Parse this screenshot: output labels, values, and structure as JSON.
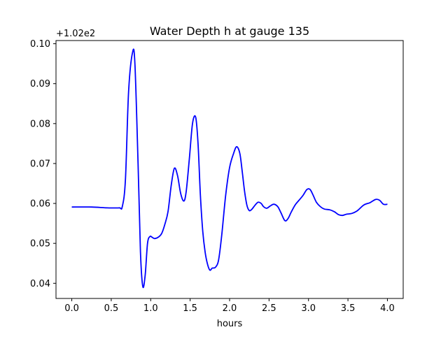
{
  "chart_data": {
    "type": "line",
    "title": "Water Depth h at gauge 135",
    "xlabel": "hours",
    "ylabel": "",
    "offset_text": "+1.02e2",
    "xlim": [
      -0.2,
      4.2
    ],
    "ylim": [
      0.0362,
      0.1008
    ],
    "x_ticks": [
      {
        "value": 0.0,
        "label": "0.0"
      },
      {
        "value": 0.5,
        "label": "0.5"
      },
      {
        "value": 1.0,
        "label": "1.0"
      },
      {
        "value": 1.5,
        "label": "1.5"
      },
      {
        "value": 2.0,
        "label": "2.0"
      },
      {
        "value": 2.5,
        "label": "2.5"
      },
      {
        "value": 3.0,
        "label": "3.0"
      },
      {
        "value": 3.5,
        "label": "3.5"
      },
      {
        "value": 4.0,
        "label": "4.0"
      }
    ],
    "y_ticks": [
      {
        "value": 0.04,
        "label": "0.04"
      },
      {
        "value": 0.05,
        "label": "0.05"
      },
      {
        "value": 0.06,
        "label": "0.06"
      },
      {
        "value": 0.07,
        "label": "0.07"
      },
      {
        "value": 0.08,
        "label": "0.08"
      },
      {
        "value": 0.09,
        "label": "0.09"
      },
      {
        "value": 0.1,
        "label": "0.10"
      }
    ],
    "grid": false,
    "legend": "none",
    "series": [
      {
        "color": "#0000ff",
        "x": [
          0.0,
          0.25,
          0.45,
          0.6,
          0.64,
          0.68,
          0.72,
          0.77,
          0.8,
          0.84,
          0.87,
          0.9,
          0.93,
          0.96,
          0.99,
          1.02,
          1.05,
          1.1,
          1.14,
          1.18,
          1.22,
          1.26,
          1.3,
          1.34,
          1.38,
          1.42,
          1.45,
          1.49,
          1.53,
          1.57,
          1.6,
          1.63,
          1.66,
          1.69,
          1.72,
          1.75,
          1.78,
          1.82,
          1.86,
          1.9,
          1.95,
          2.0,
          2.05,
          2.09,
          2.13,
          2.16,
          2.19,
          2.22,
          2.25,
          2.28,
          2.32,
          2.36,
          2.4,
          2.43,
          2.47,
          2.51,
          2.56,
          2.61,
          2.65,
          2.7,
          2.74,
          2.78,
          2.83,
          2.88,
          2.93,
          2.98,
          3.02,
          3.06,
          3.1,
          3.15,
          3.2,
          3.27,
          3.33,
          3.38,
          3.43,
          3.48,
          3.55,
          3.62,
          3.7,
          3.78,
          3.85,
          3.9,
          3.95,
          4.0
        ],
        "y": [
          0.0591,
          0.0591,
          0.0589,
          0.0589,
          0.0592,
          0.066,
          0.088,
          0.0978,
          0.095,
          0.07,
          0.048,
          0.0392,
          0.042,
          0.05,
          0.0517,
          0.0515,
          0.0512,
          0.0516,
          0.0525,
          0.0548,
          0.058,
          0.0645,
          0.0688,
          0.067,
          0.0625,
          0.0606,
          0.063,
          0.0712,
          0.08,
          0.0816,
          0.075,
          0.062,
          0.053,
          0.0478,
          0.0448,
          0.0433,
          0.0438,
          0.044,
          0.0458,
          0.052,
          0.062,
          0.069,
          0.0725,
          0.0742,
          0.0725,
          0.068,
          0.063,
          0.0595,
          0.0582,
          0.0585,
          0.0595,
          0.0603,
          0.06,
          0.0592,
          0.0588,
          0.0593,
          0.0598,
          0.0592,
          0.0577,
          0.0557,
          0.0562,
          0.0578,
          0.0596,
          0.0608,
          0.062,
          0.0635,
          0.0635,
          0.062,
          0.0603,
          0.0592,
          0.0586,
          0.0584,
          0.0579,
          0.0572,
          0.057,
          0.0573,
          0.0575,
          0.0582,
          0.0596,
          0.0602,
          0.061,
          0.0608,
          0.0598,
          0.0598
        ]
      }
    ]
  }
}
